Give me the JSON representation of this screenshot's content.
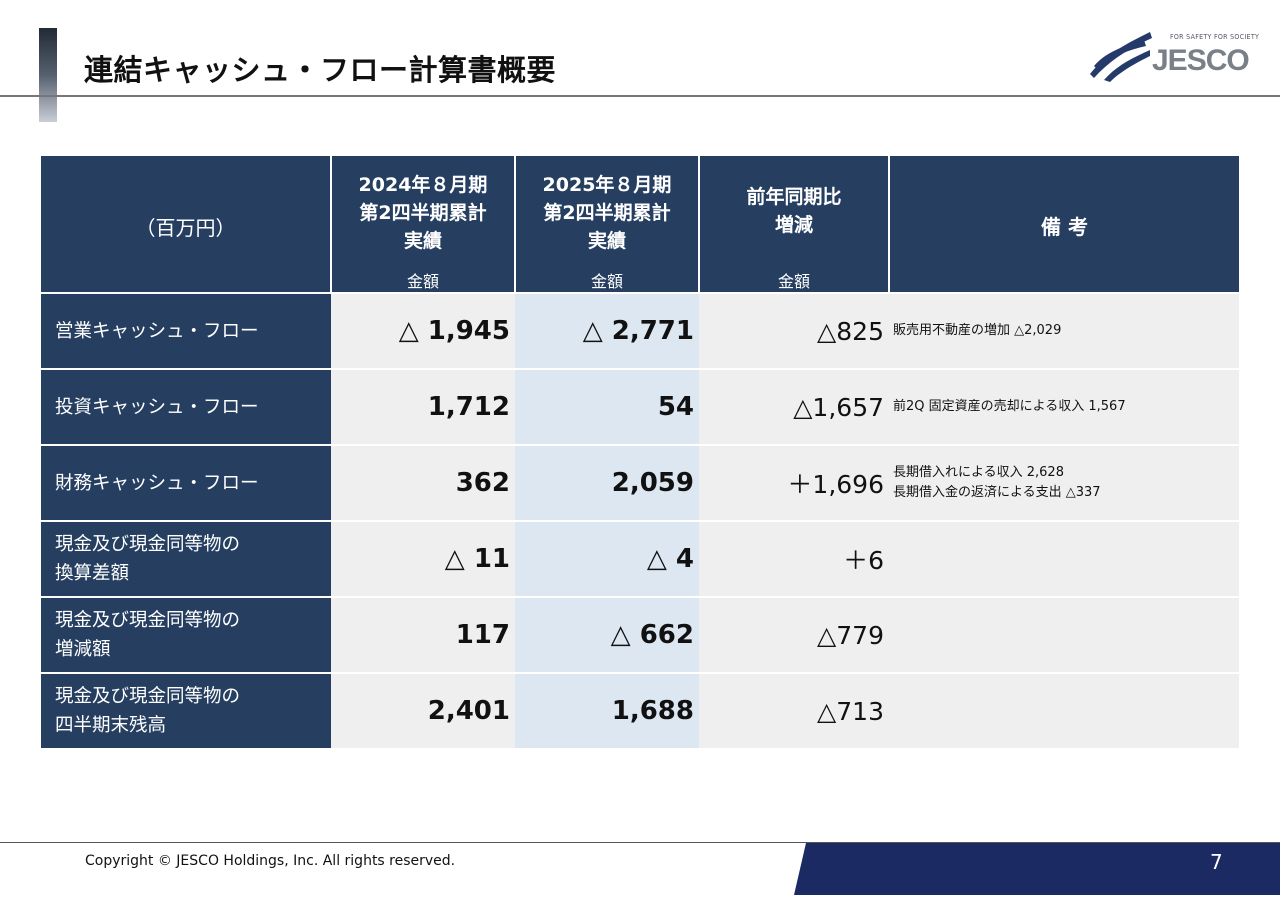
{
  "header": {
    "title": "連結キャッシュ・フロー計算書概要",
    "logo_tagline": "FOR SAFETY FOR SOCIETY",
    "logo_text": "JESCO"
  },
  "table": {
    "unit_label": "（百万円）",
    "col1": {
      "line1": "2024年８月期",
      "line2": "第2四半期累計",
      "line3": "実績",
      "sub": "金額"
    },
    "col2": {
      "line1": "2025年８月期",
      "line2": "第2四半期累計",
      "line3": "実績",
      "sub": "金額"
    },
    "col3": {
      "line1": "前年同期比",
      "line2": "増減",
      "sub": "金額"
    },
    "col4": {
      "label": "備 考"
    },
    "rows": [
      {
        "line1": "営業キャッシュ・フロー",
        "line2": "",
        "prev": "△ 1,945",
        "curr": "△ 2,771",
        "diff": "△825",
        "note1": "販売用不動産の増加 △2,029",
        "note2": ""
      },
      {
        "line1": "投資キャッシュ・フロー",
        "line2": "",
        "prev": "1,712",
        "curr": "54",
        "diff": "△1,657",
        "note1": "前2Q 固定資産の売却による収入 1,567",
        "note2": ""
      },
      {
        "line1": "財務キャッシュ・フロー",
        "line2": "",
        "prev": "362",
        "curr": "2,059",
        "diff": "＋1,696",
        "note1": "長期借入れによる収入 2,628",
        "note2": "長期借入金の返済による支出 △337"
      },
      {
        "line1": "現金及び現金同等物の",
        "line2": "換算差額",
        "prev": "△ 11",
        "curr": "△ 4",
        "diff": "＋6",
        "note1": "",
        "note2": ""
      },
      {
        "line1": "現金及び現金同等物の",
        "line2": "増減額",
        "prev": "117",
        "curr": "△ 662",
        "diff": "△779",
        "note1": "",
        "note2": ""
      },
      {
        "line1": "現金及び現金同等物の",
        "line2": "四半期末残高",
        "prev": "2,401",
        "curr": "1,688",
        "diff": "△713",
        "note1": "",
        "note2": ""
      }
    ]
  },
  "footer": {
    "copyright": "Copyright © JESCO Holdings, Inc.  All rights reserved.",
    "page_number": "7"
  },
  "colors": {
    "navy": "#263f61",
    "light_blue": "#dde7f2",
    "light_gray": "#efefef",
    "footer_band": "#1b2a63"
  }
}
